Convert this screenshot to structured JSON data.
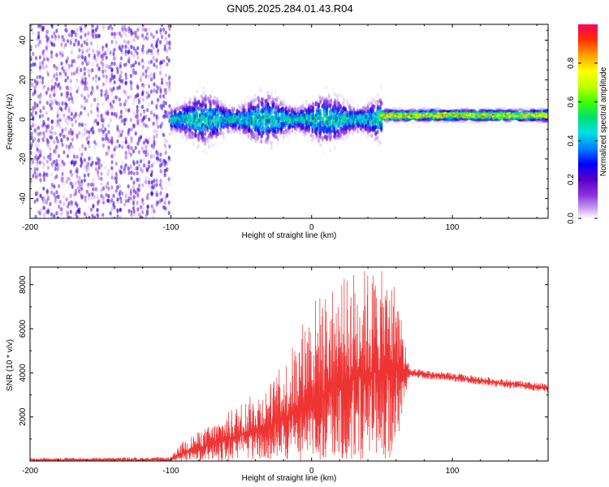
{
  "title": "GN05.2025.284.01.43.R04",
  "chart_data": [
    {
      "type": "heatmap",
      "xlabel": "Height of straight line (km)",
      "ylabel": "Frequency (Hz)",
      "xlim": [
        -200,
        168
      ],
      "ylim": [
        -50,
        48
      ],
      "xticks": [
        -200,
        -100,
        0,
        100
      ],
      "yticks": [
        -40,
        -20,
        0,
        20,
        40
      ],
      "colorbar": {
        "label": "Normalized spectral amplitude",
        "range": [
          0,
          1
        ],
        "ticks": [
          "0.0",
          "0.2",
          "0.4",
          "0.6",
          "0.8"
        ],
        "colors": [
          "#ffffff",
          "#c8a0f0",
          "#8c32dc",
          "#5a00c8",
          "#0000ff",
          "#0080ff",
          "#00e0e0",
          "#00e070",
          "#40ff00",
          "#c0ff00",
          "#ffff00",
          "#ffa000",
          "#ff3000",
          "#ff0060"
        ]
      },
      "segments": [
        {
          "x_range": [
            -200,
            -100
          ],
          "description": "broadband noise",
          "freq_center": 0,
          "freq_spread": 48,
          "peak_amplitude": 0.3
        },
        {
          "x_range": [
            -100,
            50
          ],
          "description": "signal band",
          "freq_center": 0,
          "freq_spread": 6,
          "peak_amplitude": 0.6
        },
        {
          "x_range": [
            50,
            168
          ],
          "description": "narrow line",
          "freq_center": 2,
          "freq_spread": 1.5,
          "peak_amplitude": 0.95
        }
      ]
    },
    {
      "type": "line",
      "xlabel": "Height of straight line (km)",
      "ylabel": "SNR (10 * v/v)",
      "xlim": [
        -200,
        168
      ],
      "ylim": [
        0,
        8800
      ],
      "xticks": [
        -200,
        -100,
        0,
        100
      ],
      "yticks": [
        2000,
        4000,
        6000,
        8000
      ],
      "color": "#ee3333",
      "envelope": {
        "x": [
          -200,
          -100,
          -90,
          -70,
          -50,
          -30,
          -15,
          0,
          15,
          30,
          45,
          60,
          65,
          70,
          100,
          140,
          168
        ],
        "mean": [
          50,
          50,
          400,
          800,
          1200,
          1600,
          2100,
          2700,
          3300,
          3800,
          4000,
          4400,
          4100,
          4000,
          3800,
          3500,
          3300
        ],
        "max": [
          150,
          180,
          1000,
          1700,
          2700,
          3500,
          5000,
          7500,
          7800,
          8800,
          8800,
          8200,
          6000,
          4200,
          4000,
          3700,
          3500
        ],
        "min": [
          0,
          0,
          0,
          0,
          0,
          0,
          0,
          0,
          0,
          0,
          0,
          0,
          2500,
          3800,
          3600,
          3300,
          3100
        ]
      }
    }
  ]
}
